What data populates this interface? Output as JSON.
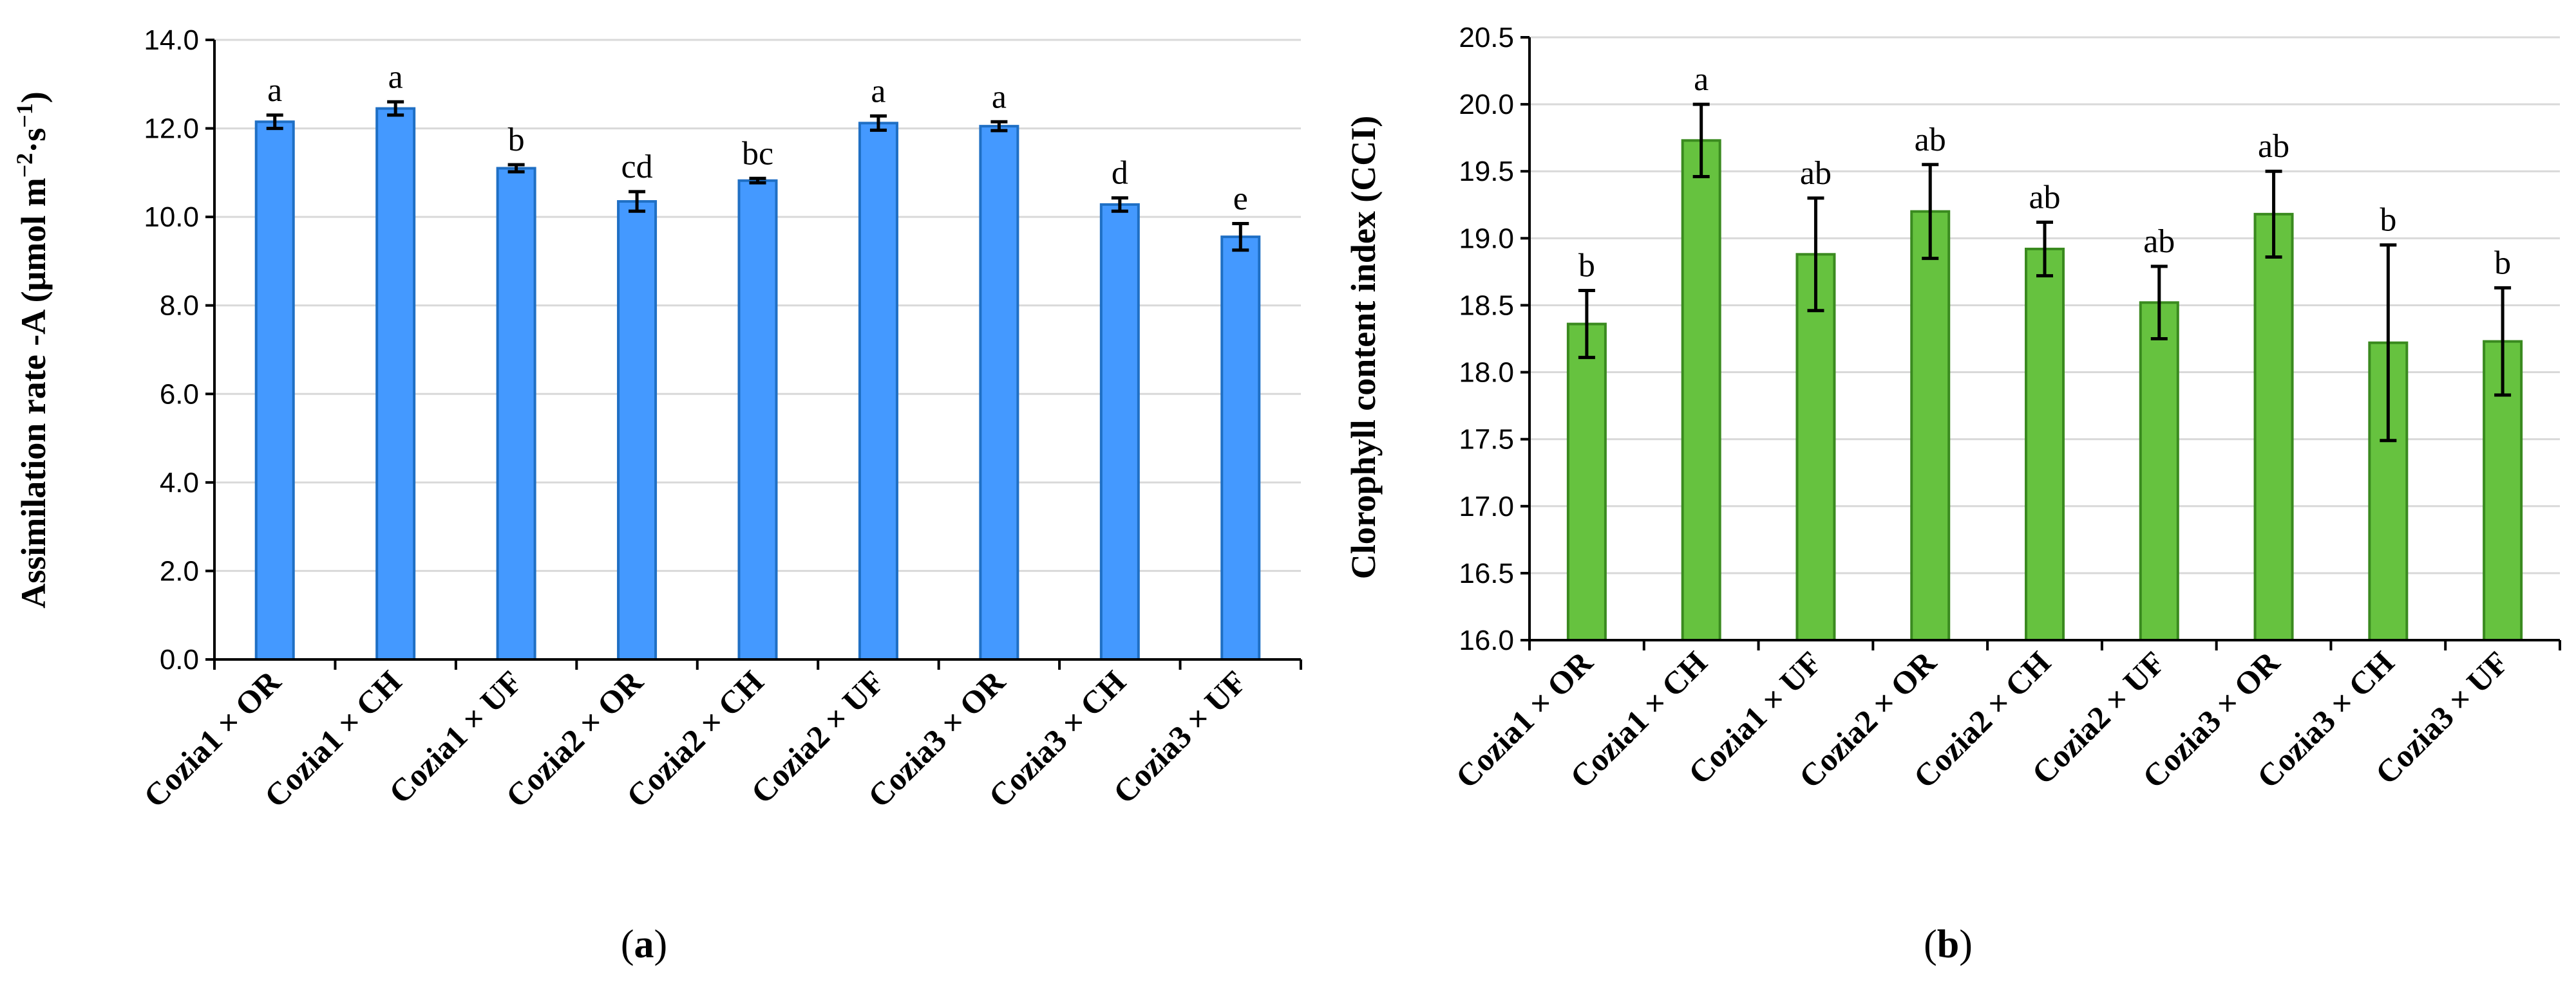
{
  "chart_data": [
    {
      "id": "a",
      "type": "bar",
      "panel_label": "a",
      "ylabel_main": "Assimilation rate -A (μmol m",
      "ylabel_sup1": "−2",
      "ylabel_mid": "·s",
      "ylabel_sup2": "−1",
      "ylabel_end": ")",
      "xlabel": "",
      "ylim": [
        0,
        14
      ],
      "ytick_step": 2,
      "ytick_decimals": 1,
      "grid": true,
      "colors": {
        "fill": "#4499ff",
        "edge": "#1f6fc4"
      },
      "categories": [
        "Cozia1 × OR",
        "Cozia1 × CH",
        "Cozia1 × UF",
        "Cozia2 × OR",
        "Cozia2 × CH",
        "Cozia2 × UF",
        "Cozia3 × OR",
        "Cozia3 × CH",
        "Cozia3 × UF"
      ],
      "values": [
        12.15,
        12.45,
        11.1,
        10.35,
        10.82,
        12.12,
        12.05,
        10.28,
        9.55
      ],
      "errors": [
        0.15,
        0.15,
        0.08,
        0.22,
        0.05,
        0.16,
        0.1,
        0.15,
        0.3
      ],
      "letters": [
        "a",
        "a",
        "b",
        "cd",
        "bc",
        "a",
        "a",
        "d",
        "e"
      ]
    },
    {
      "id": "b",
      "type": "bar",
      "panel_label": "b",
      "ylabel_main": "Clorophyll content index (CCI)",
      "xlabel": "",
      "ylim": [
        16.0,
        20.5
      ],
      "ytick_step": 0.5,
      "ytick_decimals": 1,
      "grid": true,
      "colors": {
        "fill": "#66c23f",
        "edge": "#3a8a1f"
      },
      "categories": [
        "Cozia1 × OR",
        "Cozia1 × CH",
        "Cozia1 × UF",
        "Cozia2 × OR",
        "Cozia2 × CH",
        "Cozia2 × UF",
        "Cozia3 × OR",
        "Cozia3 × CH",
        "Cozia3 × UF"
      ],
      "values": [
        18.36,
        19.73,
        18.88,
        19.2,
        18.92,
        18.52,
        19.18,
        18.22,
        18.23
      ],
      "errors": [
        0.25,
        0.27,
        0.42,
        0.35,
        0.2,
        0.27,
        0.32,
        0.73,
        0.4
      ],
      "letters": [
        "b",
        "a",
        "ab",
        "ab",
        "ab",
        "ab",
        "ab",
        "b",
        "b"
      ]
    }
  ]
}
